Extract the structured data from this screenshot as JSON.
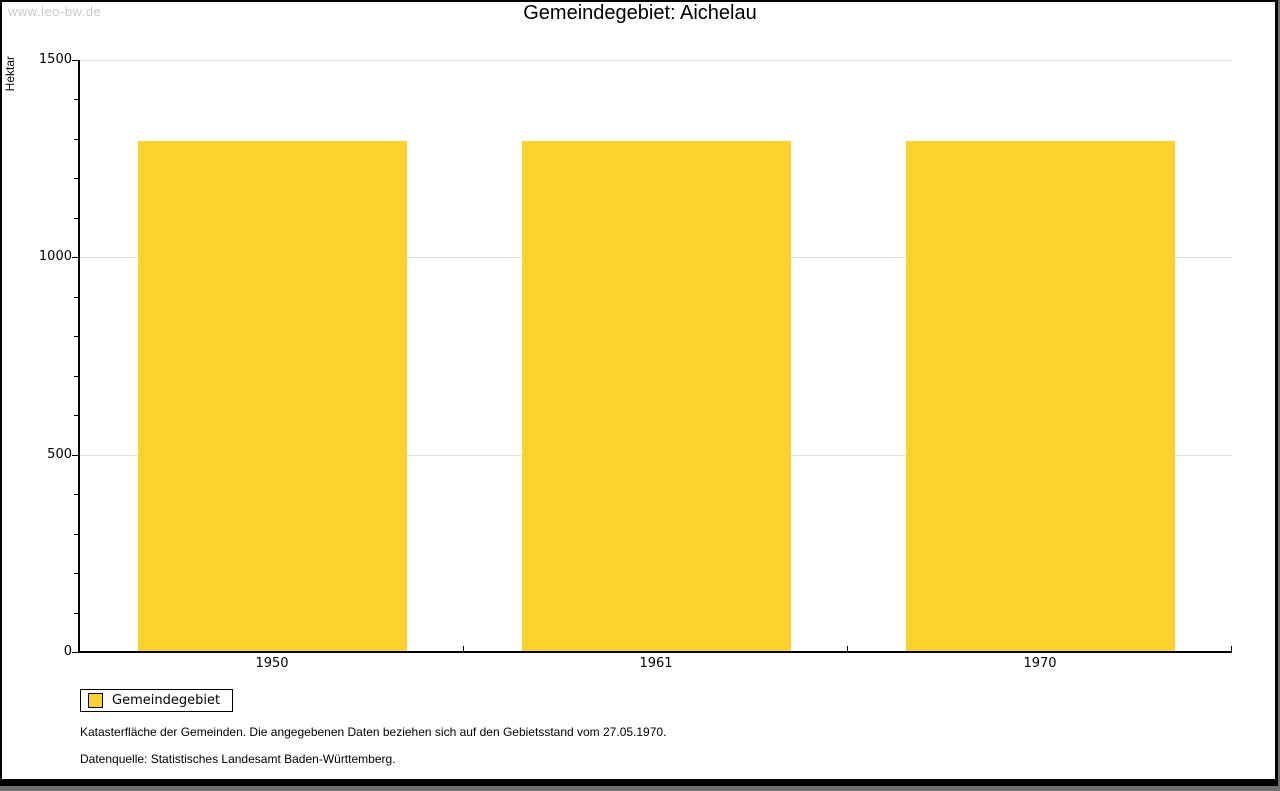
{
  "window": {
    "watermark": "www.leo-bw.de"
  },
  "chart_data": {
    "type": "bar",
    "title": "Gemeindegebiet: Aichelau",
    "ylabel": "Hektar",
    "xlabel": "",
    "categories": [
      "1950",
      "1961",
      "1970"
    ],
    "series": [
      {
        "name": "Gemeindegebiet",
        "values": [
          1295,
          1295,
          1295
        ]
      }
    ],
    "ylim": [
      0,
      1500
    ],
    "ytick_major_step": 500,
    "ytick_minor_step": 100,
    "grid": "horizontal-major",
    "legend_position": "bottom-left",
    "bar_color": "#fcd32e",
    "gridline_color": "#e0e0e0"
  },
  "legend": {
    "items": [
      {
        "label": "Gemeindegebiet",
        "color": "#fcd32e"
      }
    ]
  },
  "footer": {
    "note1": "Katasterfläche der Gemeinden. Die angegebenen Daten beziehen sich auf den Gebietsstand vom 27.05.1970.",
    "note2": "Datenquelle: Statistisches Landesamt Baden-Württemberg."
  }
}
